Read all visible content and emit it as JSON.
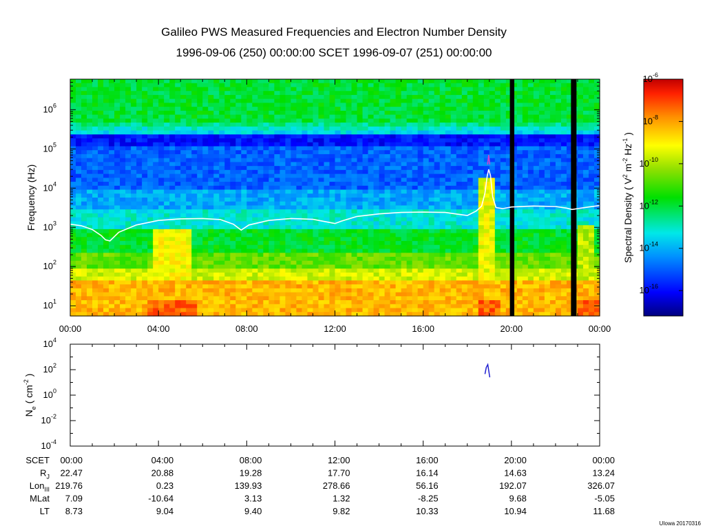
{
  "figure": {
    "title_line1": "Galileo PWS Measured Frequencies and Electron Number Density",
    "title_line2": "1996-09-06 (250) 00:00:00 SCET 1996-09-07 (251) 00:00:00",
    "footer": "UIowa 20170316"
  },
  "chart_data": [
    {
      "type": "heatmap",
      "title": "",
      "ylabel": "Frequency (Hz)",
      "yscale": "log",
      "ylim": [
        5.5,
        6000000
      ],
      "y_ticks": [
        {
          "mant": "10",
          "exp": "1"
        },
        {
          "mant": "10",
          "exp": "2"
        },
        {
          "mant": "10",
          "exp": "3"
        },
        {
          "mant": "10",
          "exp": "4"
        },
        {
          "mant": "10",
          "exp": "5"
        },
        {
          "mant": "10",
          "exp": "6"
        }
      ],
      "x_ticks": [
        "00:00",
        "04:00",
        "08:00",
        "12:00",
        "16:00",
        "20:00",
        "00:00"
      ],
      "x_range_hours": [
        0,
        24
      ],
      "colorbar": {
        "label": "Spectral Density ( V",
        "label_sup1": "2",
        "label_mid": " m",
        "label_sup2": "-2",
        "label_mid2": " Hz",
        "label_sup3": "-1",
        "label_end": " )",
        "scale": "log",
        "range_exp": [
          -17.2,
          -6
        ],
        "ticks": [
          {
            "mant": "10",
            "exp": "-6"
          },
          {
            "mant": "10",
            "exp": "-8"
          },
          {
            "mant": "10",
            "exp": "-10"
          },
          {
            "mant": "10",
            "exp": "-12"
          },
          {
            "mant": "10",
            "exp": "-14"
          },
          {
            "mant": "10",
            "exp": "-16"
          }
        ]
      },
      "data_gaps_hours": [
        [
          19.93,
          20.13
        ],
        [
          22.7,
          22.95
        ]
      ],
      "electron_plasma_frequency_line_hz": {
        "hours": [
          0,
          0.5,
          1.0,
          1.4,
          1.6,
          1.8,
          2.2,
          3.0,
          4.0,
          5.0,
          6.0,
          6.8,
          7.4,
          7.75,
          8.1,
          9.0,
          10.0,
          11.0,
          11.7,
          12.0,
          12.3,
          13.0,
          14.0,
          15.0,
          16.0,
          17.0,
          17.6,
          18.0,
          18.4,
          18.65,
          18.8,
          18.9,
          18.97,
          19.05,
          19.15,
          19.3,
          19.6,
          20.0,
          21.0,
          22.0,
          22.5,
          22.75,
          23.0,
          23.5,
          24.0
        ],
        "values": [
          1200,
          1100,
          880,
          620,
          480,
          450,
          750,
          1150,
          1500,
          1650,
          1680,
          1580,
          1200,
          850,
          1150,
          1500,
          1680,
          1600,
          1350,
          1250,
          1450,
          1900,
          2200,
          2400,
          2450,
          2400,
          2150,
          2000,
          2600,
          3500,
          7500,
          20000,
          30000,
          21000,
          6000,
          3200,
          3000,
          3300,
          3500,
          3400,
          3100,
          2850,
          3000,
          3300,
          3600
        ]
      },
      "burst_marker_hz": {
        "hours": [
          18.92,
          18.97,
          19.02
        ],
        "values": [
          40000,
          70000,
          40000
        ]
      }
    },
    {
      "type": "line",
      "ylabel": "N",
      "ylabel_sub": "e",
      "ylabel_unit": " ( cm",
      "ylabel_unit_sup": "-2",
      "ylabel_unit_end": " )",
      "yscale": "log",
      "ylim": [
        0.0001,
        10000
      ],
      "y_ticks": [
        {
          "mant": "10",
          "exp": "4"
        },
        {
          "mant": "10",
          "exp": "2"
        },
        {
          "mant": "10",
          "exp": "0"
        },
        {
          "mant": "10",
          "exp": "-2"
        },
        {
          "mant": "10",
          "exp": "-4"
        }
      ],
      "x_range_hours": [
        0,
        24
      ],
      "color": "#2020d0",
      "series": [
        {
          "x": [
            18.8,
            18.86,
            18.93,
            19.02
          ],
          "y": [
            45,
            150,
            250,
            25
          ]
        }
      ]
    }
  ],
  "ephemeris": {
    "rows": [
      {
        "label": "SCET",
        "sub": "",
        "values": [
          "00:00",
          "04:00",
          "08:00",
          "12:00",
          "16:00",
          "20:00",
          "00:00"
        ]
      },
      {
        "label": "R",
        "sub": "J",
        "values": [
          "22.47",
          "20.88",
          "19.28",
          "17.70",
          "16.14",
          "14.63",
          "13.24"
        ]
      },
      {
        "label": "Lon",
        "sub": "III",
        "values": [
          "219.76",
          "0.23",
          "139.93",
          "278.66",
          "56.16",
          "192.07",
          "326.07"
        ]
      },
      {
        "label": "MLat",
        "sub": "",
        "values": [
          "7.09",
          "-10.64",
          "3.13",
          "1.32",
          "-8.25",
          "9.68",
          "-5.05"
        ]
      },
      {
        "label": "LT",
        "sub": "",
        "values": [
          "8.73",
          "9.04",
          "9.40",
          "9.82",
          "10.33",
          "10.94",
          "11.68"
        ]
      }
    ]
  }
}
